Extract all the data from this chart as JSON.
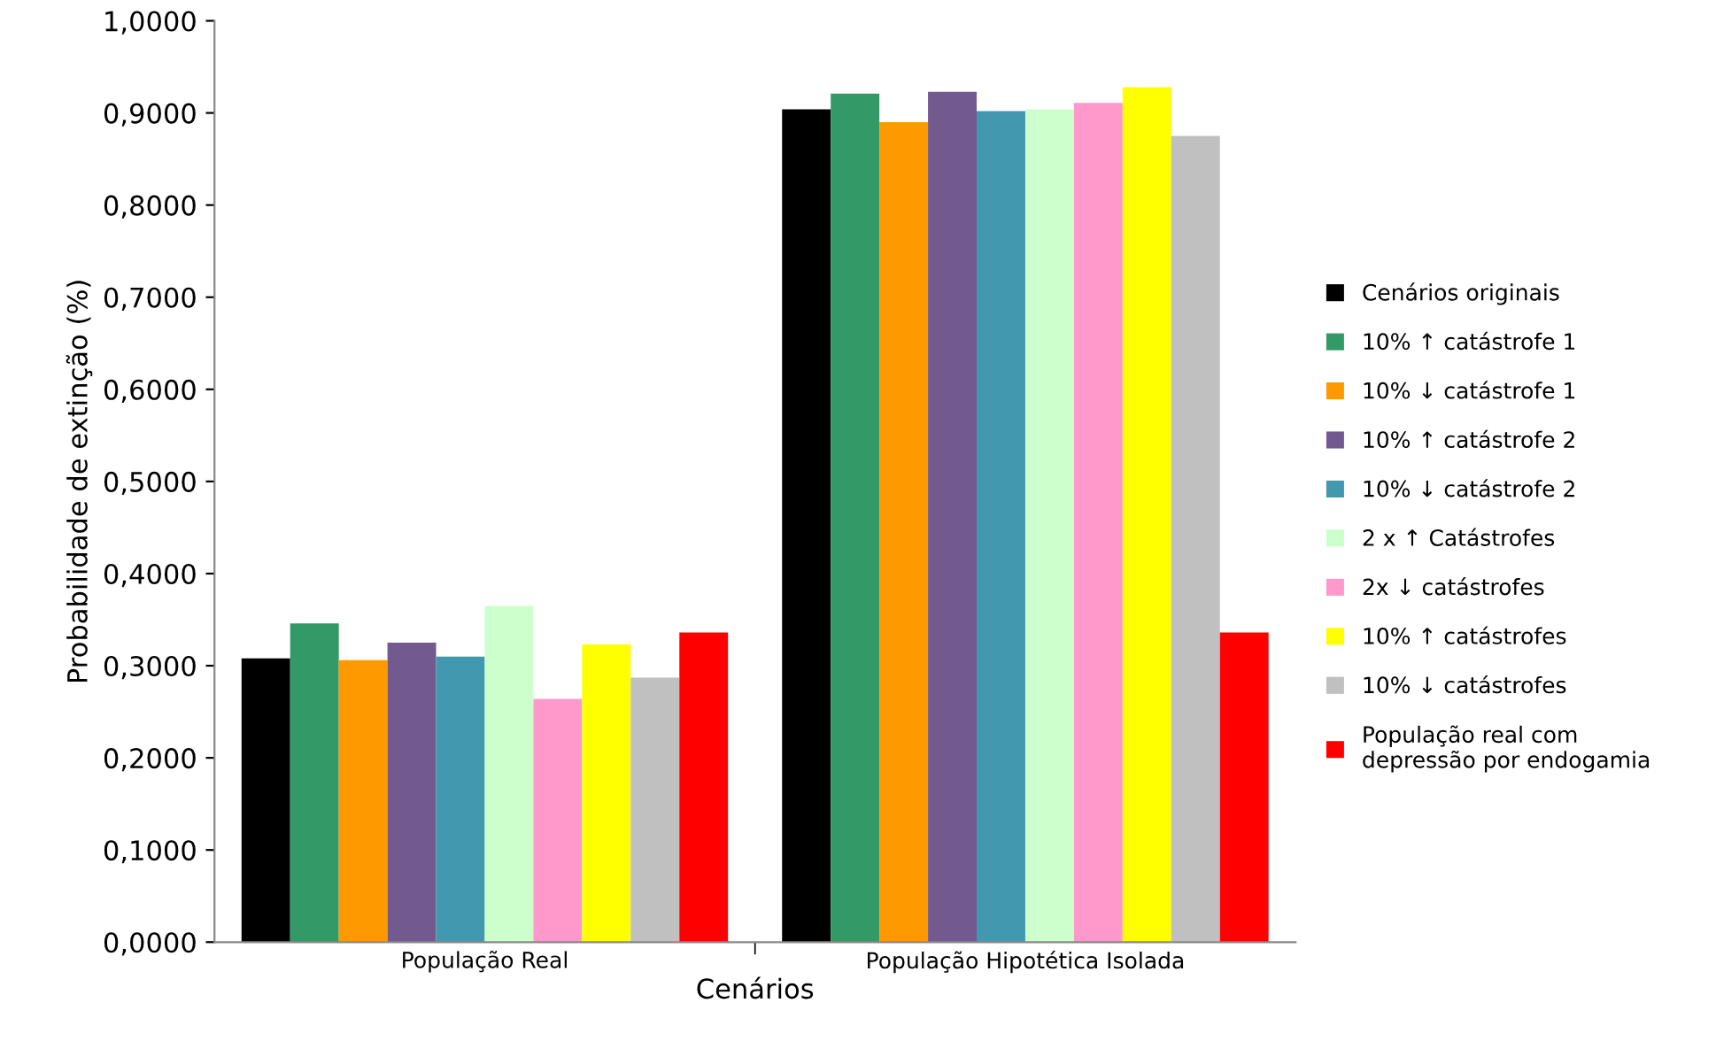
{
  "chart_data": {
    "type": "bar",
    "xlabel": "Cenários",
    "ylabel": "Probabilidade de extinção (%)",
    "categories": [
      "População Real",
      "População Hipotética Isolada"
    ],
    "ylim": [
      0,
      1
    ],
    "yticks": [
      {
        "value": 0,
        "label": "0,0000"
      },
      {
        "value": 0.1,
        "label": "0,1000"
      },
      {
        "value": 0.2,
        "label": "0,2000"
      },
      {
        "value": 0.3,
        "label": "0,3000"
      },
      {
        "value": 0.4,
        "label": "0,4000"
      },
      {
        "value": 0.5,
        "label": "0,5000"
      },
      {
        "value": 0.6,
        "label": "0,6000"
      },
      {
        "value": 0.7,
        "label": "0,7000"
      },
      {
        "value": 0.8,
        "label": "0,8000"
      },
      {
        "value": 0.9,
        "label": "0,9000"
      },
      {
        "value": 1,
        "label": "1,0000"
      }
    ],
    "grid": false,
    "legend": "right",
    "series": [
      {
        "name": "Cenários originais",
        "color": "#000000",
        "values": [
          0.308,
          0.904
        ]
      },
      {
        "name": "10% ↑ catástrofe 1",
        "color": "#339966",
        "values": [
          0.346,
          0.921
        ]
      },
      {
        "name": "10% ↓ catástrofe 1",
        "color": "#ff9900",
        "values": [
          0.306,
          0.89
        ]
      },
      {
        "name": "10% ↑ catástrofe 2",
        "color": "#725a8f",
        "values": [
          0.325,
          0.923
        ]
      },
      {
        "name": "10% ↓ catástrofe 2",
        "color": "#4198af",
        "values": [
          0.31,
          0.902
        ]
      },
      {
        "name": "2 x ↑ Catástrofes",
        "color": "#ccffcc",
        "values": [
          0.365,
          0.904
        ]
      },
      {
        "name": "2x ↓ catástrofes",
        "color": "#ff99cc",
        "values": [
          0.264,
          0.911
        ]
      },
      {
        "name": "10% ↑ catástrofes",
        "color": "#ffff00",
        "values": [
          0.323,
          0.928
        ]
      },
      {
        "name": "10% ↓ catástrofes",
        "color": "#c0c0c0",
        "values": [
          0.287,
          0.875
        ]
      },
      {
        "name": "População real com\ndepressão por endogamia",
        "color": "#ff0000",
        "values": [
          0.336,
          0.336
        ]
      }
    ]
  }
}
